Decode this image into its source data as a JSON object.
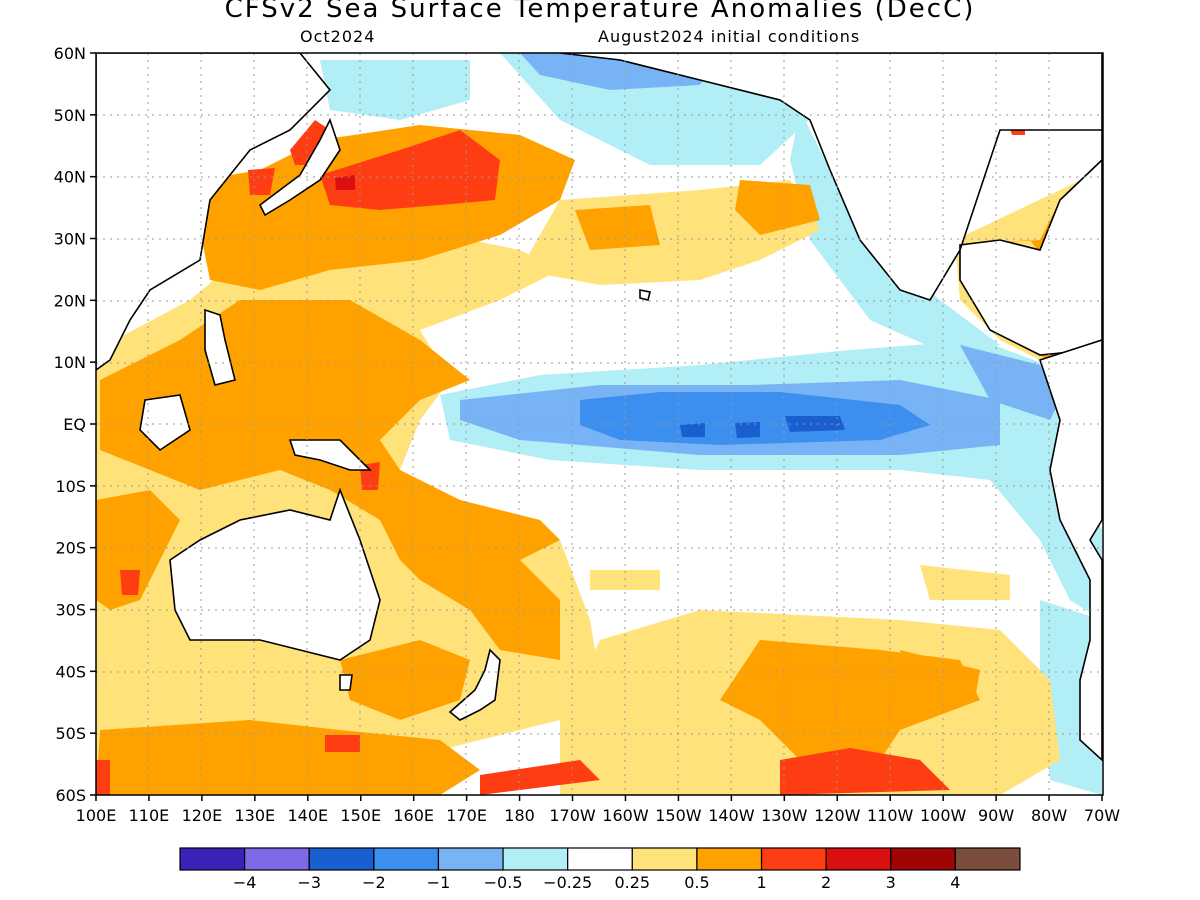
{
  "title": "CFSv2 Sea Surface Temperature Anomalies (DecC)",
  "subtitle_left": "Oct2024",
  "subtitle_right": "August2024 initial conditions",
  "y_ticks": [
    "60N",
    "50N",
    "40N",
    "30N",
    "20N",
    "10N",
    "EQ",
    "10S",
    "20S",
    "30S",
    "40S",
    "50S",
    "60S"
  ],
  "x_ticks": [
    "100E",
    "110E",
    "120E",
    "130E",
    "140E",
    "150E",
    "160E",
    "170E",
    "180",
    "170W",
    "160W",
    "150W",
    "140W",
    "130W",
    "120W",
    "110W",
    "100W",
    "90W",
    "80W",
    "70W"
  ],
  "colorbar": {
    "colors": [
      "#3a22b8",
      "#7f69e8",
      "#1a5fd0",
      "#3c8fee",
      "#78b4f5",
      "#b2eef6",
      "#ffffff",
      "#ffe27a",
      "#ffa200",
      "#ff3d12",
      "#da1010",
      "#a10404",
      "#7a4d3c"
    ],
    "labels": [
      "−4",
      "−3",
      "−2",
      "−1",
      "−0.5",
      "−0.25",
      "0.25",
      "0.5",
      "1",
      "2",
      "3",
      "4"
    ]
  },
  "map": {
    "colors": {
      "ocean": "#ffffff",
      "warm_025": "#ffe27a",
      "warm_05": "#ffa200",
      "warm_1": "#ff3d12",
      "warm_2": "#da1010",
      "cool_025": "#b2eef6",
      "cool_05": "#78b4f5",
      "cool_1": "#3c8fee",
      "cool_2": "#1a5fd0",
      "coast": "#000000",
      "grid": "#9a9a9a"
    }
  }
}
